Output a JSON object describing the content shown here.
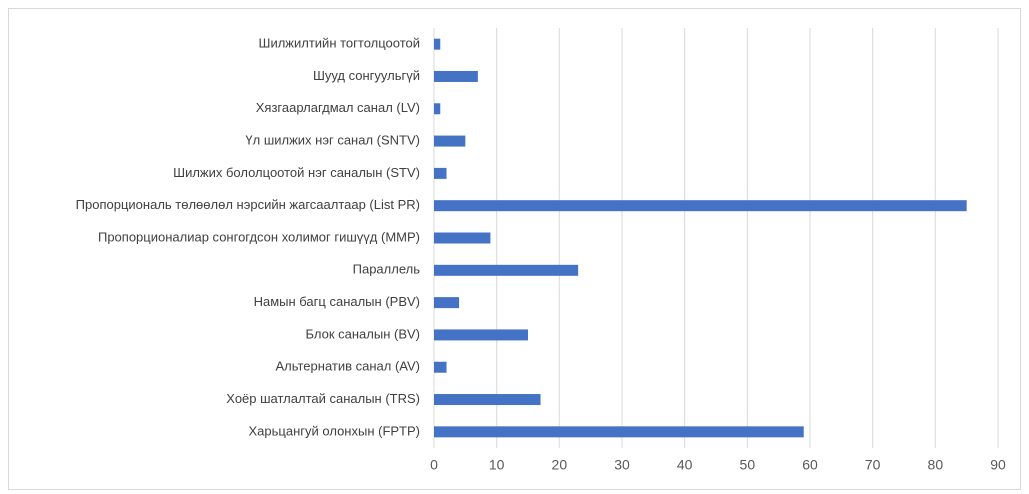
{
  "chart_data": {
    "type": "bar",
    "orientation": "horizontal",
    "categories": [
      "Шилжилтийн тогтолцоотой",
      "Шууд сонгуульгүй",
      "Хязгаарлагдмал санал (LV)",
      "Үл шилжих нэг санал (SNTV)",
      "Шилжих бололцоотой нэг саналын (STV)",
      "Пропорциональ төлөөлөл нэрсийн жагсаалтаар (List PR)",
      "Пропорционалиар сонгогдсон холимог гишүүд (MMP)",
      "Параллель",
      "Намын багц саналын (PBV)",
      "Блок саналын (BV)",
      "Альтернатив санал (AV)",
      "Хоёр шатлалтай саналын (TRS)",
      "Харьцангуй олонхын (FPTP)"
    ],
    "values": [
      1,
      7,
      1,
      5,
      2,
      85,
      9,
      23,
      4,
      15,
      2,
      17,
      59
    ],
    "color": "#4472c4",
    "xlim": [
      0,
      90
    ],
    "xticks": [
      0,
      10,
      20,
      30,
      40,
      50,
      60,
      70,
      80,
      90
    ],
    "grid": true
  }
}
